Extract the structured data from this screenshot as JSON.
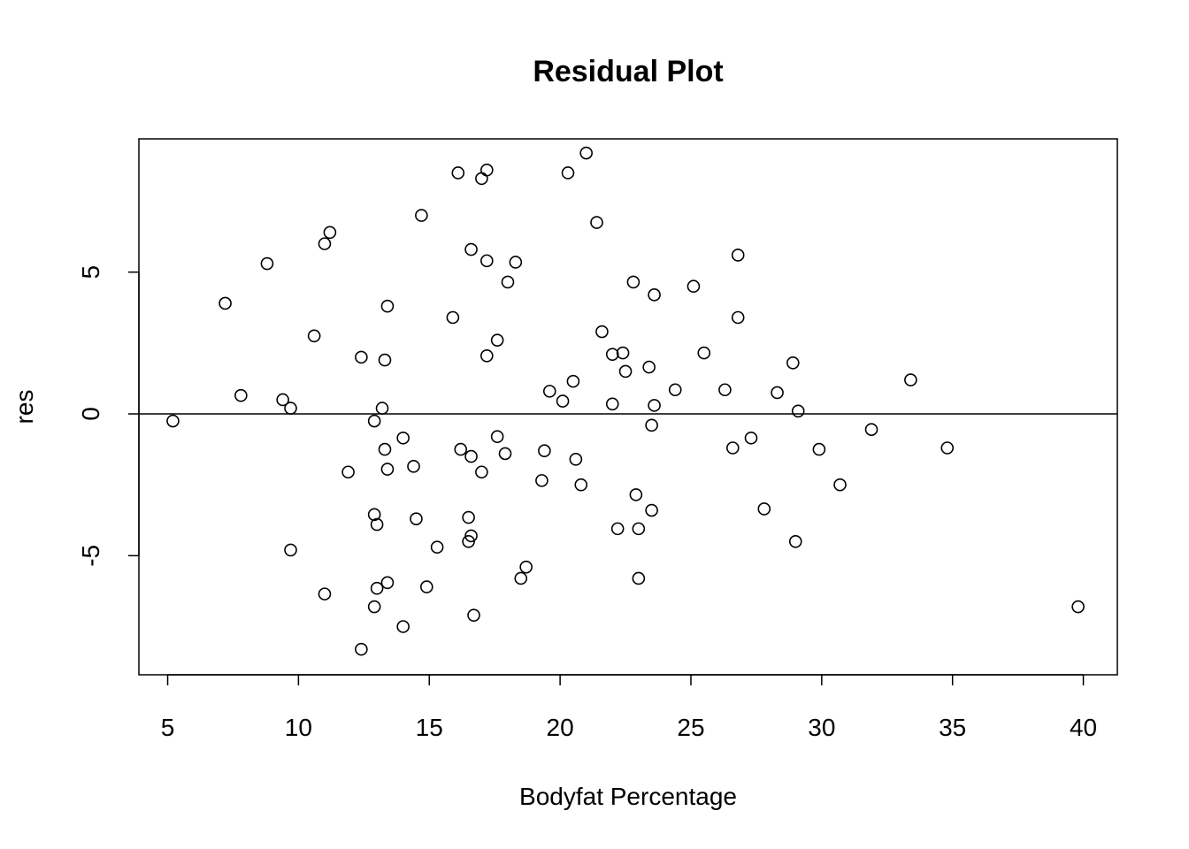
{
  "chart_data": {
    "type": "scatter",
    "title": "Residual Plot",
    "xlabel": "Bodyfat Percentage",
    "ylabel": "res",
    "xlim": [
      3.9,
      41.3
    ],
    "ylim": [
      -9.2,
      9.7
    ],
    "x_ticks": [
      5,
      10,
      15,
      20,
      25,
      30,
      35,
      40
    ],
    "y_ticks": [
      -5,
      0,
      5
    ],
    "reference_line": {
      "y": 0
    },
    "grid": false,
    "legend": "none",
    "marker": "open-circle",
    "points": [
      [
        5.2,
        -0.25
      ],
      [
        7.2,
        3.9
      ],
      [
        7.8,
        0.65
      ],
      [
        8.8,
        5.3
      ],
      [
        9.4,
        0.5
      ],
      [
        9.7,
        0.2
      ],
      [
        9.7,
        -4.8
      ],
      [
        10.6,
        2.75
      ],
      [
        11.0,
        6.0
      ],
      [
        11.0,
        -6.35
      ],
      [
        11.2,
        6.4
      ],
      [
        11.9,
        -2.05
      ],
      [
        12.4,
        2.0
      ],
      [
        12.4,
        -8.3
      ],
      [
        12.9,
        -0.25
      ],
      [
        12.9,
        -3.55
      ],
      [
        12.9,
        -6.8
      ],
      [
        13.0,
        -3.9
      ],
      [
        13.0,
        -6.15
      ],
      [
        13.2,
        0.2
      ],
      [
        13.3,
        1.9
      ],
      [
        13.3,
        -1.25
      ],
      [
        13.4,
        3.8
      ],
      [
        13.4,
        -1.95
      ],
      [
        13.4,
        -5.95
      ],
      [
        14.0,
        -0.85
      ],
      [
        14.0,
        -7.5
      ],
      [
        14.4,
        -1.85
      ],
      [
        14.5,
        -3.7
      ],
      [
        14.7,
        7.0
      ],
      [
        14.9,
        -6.1
      ],
      [
        15.3,
        -4.7
      ],
      [
        15.9,
        3.4
      ],
      [
        16.1,
        8.5
      ],
      [
        16.2,
        -1.25
      ],
      [
        16.5,
        -3.65
      ],
      [
        16.5,
        -4.5
      ],
      [
        16.6,
        5.8
      ],
      [
        16.6,
        -1.5
      ],
      [
        16.6,
        -4.3
      ],
      [
        16.7,
        -7.1
      ],
      [
        17.0,
        8.3
      ],
      [
        17.0,
        -2.05
      ],
      [
        17.2,
        8.6
      ],
      [
        17.2,
        5.4
      ],
      [
        17.2,
        2.05
      ],
      [
        17.6,
        2.6
      ],
      [
        17.6,
        -0.8
      ],
      [
        17.9,
        -1.4
      ],
      [
        18.0,
        4.65
      ],
      [
        18.3,
        5.35
      ],
      [
        18.5,
        -5.8
      ],
      [
        18.7,
        -5.4
      ],
      [
        19.3,
        -2.35
      ],
      [
        19.4,
        -1.3
      ],
      [
        19.6,
        0.8
      ],
      [
        20.1,
        0.45
      ],
      [
        20.3,
        8.5
      ],
      [
        20.5,
        1.15
      ],
      [
        20.6,
        -1.6
      ],
      [
        20.8,
        -2.5
      ],
      [
        21.0,
        9.2
      ],
      [
        21.4,
        6.75
      ],
      [
        21.6,
        2.9
      ],
      [
        22.0,
        2.1
      ],
      [
        22.0,
        0.35
      ],
      [
        22.2,
        -4.05
      ],
      [
        22.4,
        2.15
      ],
      [
        22.5,
        1.5
      ],
      [
        22.8,
        4.65
      ],
      [
        22.9,
        -2.85
      ],
      [
        23.0,
        -4.05
      ],
      [
        23.0,
        -5.8
      ],
      [
        23.4,
        1.65
      ],
      [
        23.5,
        -0.4
      ],
      [
        23.5,
        -3.4
      ],
      [
        23.6,
        4.2
      ],
      [
        23.6,
        0.3
      ],
      [
        24.4,
        0.85
      ],
      [
        25.1,
        4.5
      ],
      [
        25.5,
        2.15
      ],
      [
        26.3,
        0.85
      ],
      [
        26.6,
        -1.2
      ],
      [
        26.8,
        5.6
      ],
      [
        26.8,
        3.4
      ],
      [
        27.3,
        -0.85
      ],
      [
        27.8,
        -3.35
      ],
      [
        28.3,
        0.75
      ],
      [
        28.9,
        1.8
      ],
      [
        29.0,
        -4.5
      ],
      [
        29.1,
        0.1
      ],
      [
        29.9,
        -1.25
      ],
      [
        30.7,
        -2.5
      ],
      [
        31.9,
        -0.55
      ],
      [
        33.4,
        1.2
      ],
      [
        34.8,
        -1.2
      ],
      [
        39.8,
        -6.8
      ]
    ]
  }
}
